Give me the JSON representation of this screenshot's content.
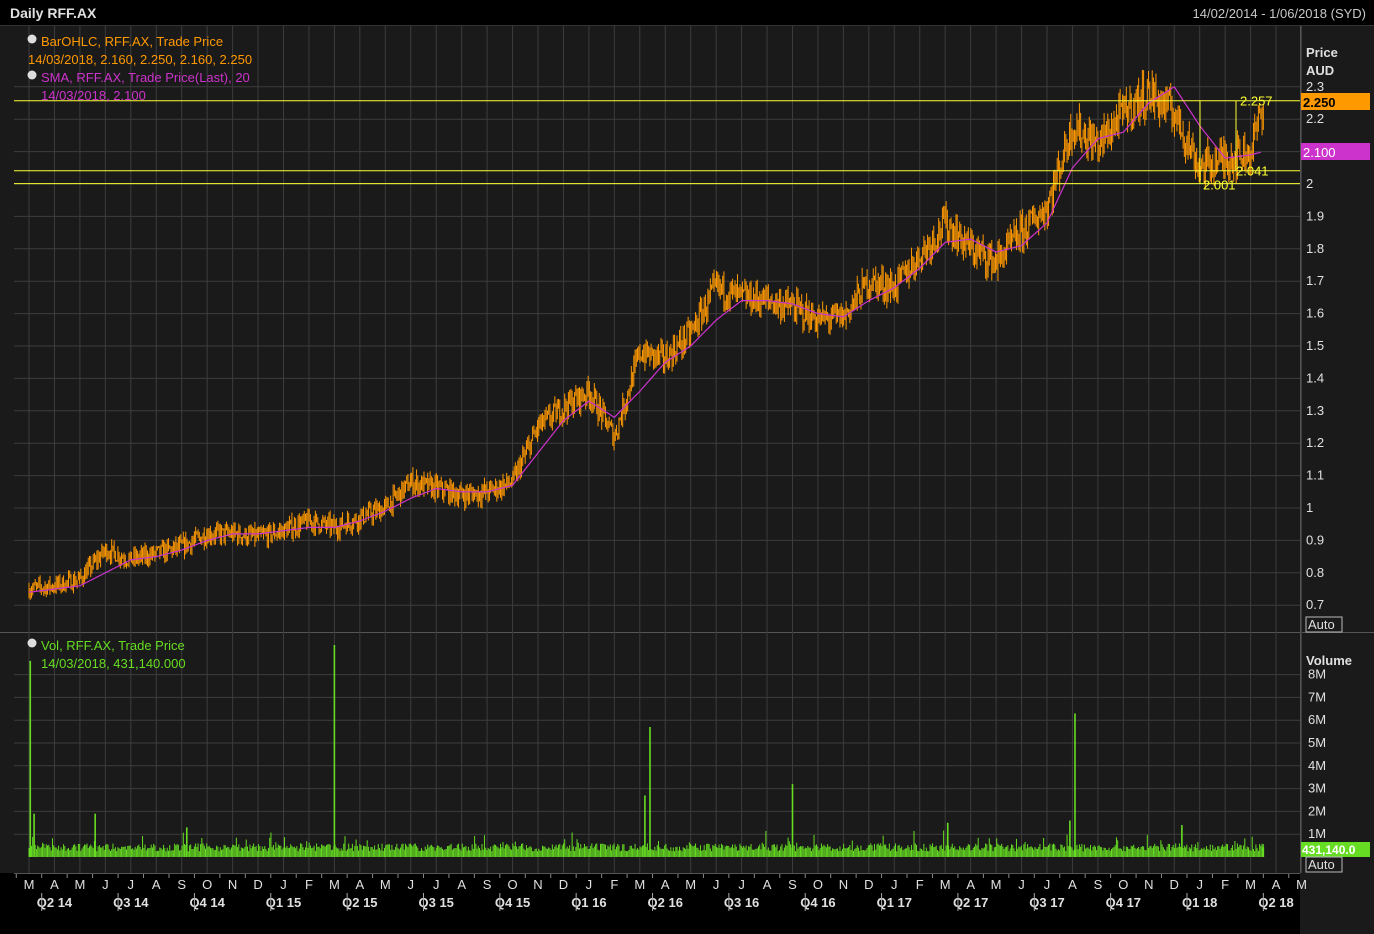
{
  "header": {
    "title": "Daily RFF.AX",
    "range": "14/02/2014 - 1/06/2018 (SYD)"
  },
  "legend": {
    "ohlc_name": "BarOHLC, RFF.AX, Trade Price",
    "ohlc_values": "14/03/2018, 2.160, 2.250, 2.160, 2.250",
    "sma_name": "SMA, RFF.AX, Trade Price(Last),  20",
    "sma_values": "14/03/2018, 2.100",
    "vol_name": "Vol, RFF.AX, Trade Price",
    "vol_values": "14/03/2018, 431,140.000"
  },
  "price_axis": {
    "title": "Price",
    "unit": "AUD",
    "auto": "Auto",
    "tag_last": "2.250",
    "tag_sma": "2.100"
  },
  "volume_axis": {
    "title": "Volume",
    "auto": "Auto",
    "tag_last": "431,140.0"
  },
  "levels": [
    {
      "value": 2.257,
      "label": "2.257"
    },
    {
      "value": 2.041,
      "label": "2.041"
    },
    {
      "value": 2.001,
      "label": "2.001"
    }
  ],
  "colors": {
    "background": "#1a1a1a",
    "grid": "#3c3c3c",
    "price": "#ff9900",
    "sma": "#cc33cc",
    "volume": "#66dd22",
    "level": "#ffff33"
  },
  "chart_data": [
    {
      "type": "ohlc",
      "title": "Daily RFF.AX",
      "ylabel": "Price AUD",
      "ylim": [
        0.65,
        2.35
      ],
      "yticks": [
        "0.7",
        "0.8",
        "0.9",
        "1",
        "1.1",
        "1.2",
        "1.3",
        "1.4",
        "1.5",
        "1.6",
        "1.7",
        "1.8",
        "1.9",
        "2",
        "2.1",
        "2.2",
        "2.3"
      ],
      "month_labels": [
        "M",
        "A",
        "M",
        "J",
        "J",
        "A",
        "S",
        "O",
        "N",
        "D",
        "J",
        "F",
        "M",
        "A",
        "M",
        "J",
        "J",
        "A",
        "S",
        "O",
        "N",
        "D",
        "J",
        "F",
        "M",
        "A",
        "M",
        "J",
        "J",
        "A",
        "S",
        "O",
        "N",
        "D",
        "J",
        "F",
        "M",
        "A",
        "M",
        "J",
        "J",
        "A",
        "S",
        "O",
        "N",
        "D",
        "J",
        "F",
        "M",
        "A",
        "M"
      ],
      "quarter_labels": [
        "Q2 14",
        "Q3 14",
        "Q4 14",
        "Q1 15",
        "Q2 15",
        "Q3 15",
        "Q4 15",
        "Q1 16",
        "Q2 16",
        "Q3 16",
        "Q4 16",
        "Q1 17",
        "Q2 17",
        "Q3 17",
        "Q4 17",
        "Q1 18",
        "Q2 18"
      ],
      "x_months": [
        0,
        1,
        2,
        3,
        4,
        5,
        6,
        7,
        8,
        9,
        10,
        11,
        12,
        13,
        14,
        15,
        16,
        17,
        18,
        19,
        20,
        21,
        22,
        23,
        24,
        25,
        26,
        27,
        28,
        29,
        30,
        31,
        32,
        33,
        34,
        35,
        36,
        37,
        38,
        39,
        40,
        41,
        42,
        43,
        44,
        45,
        46,
        47,
        48,
        48.5
      ],
      "series": [
        {
          "name": "BarOHLC, RFF.AX, Trade Price",
          "values": [
            0.75,
            0.76,
            0.78,
            0.87,
            0.84,
            0.86,
            0.88,
            0.92,
            0.92,
            0.91,
            0.93,
            0.96,
            0.94,
            0.97,
            1.0,
            1.08,
            1.06,
            1.04,
            1.05,
            1.08,
            1.25,
            1.31,
            1.36,
            1.22,
            1.48,
            1.46,
            1.54,
            1.68,
            1.65,
            1.64,
            1.62,
            1.58,
            1.59,
            1.7,
            1.68,
            1.78,
            1.88,
            1.8,
            1.76,
            1.85,
            1.93,
            2.18,
            2.12,
            2.22,
            2.28,
            2.22,
            2.05,
            2.08,
            2.1,
            2.25
          ]
        },
        {
          "name": "SMA, RFF.AX, Trade Price(Last),  20",
          "values": [
            0.74,
            0.75,
            0.76,
            0.8,
            0.84,
            0.85,
            0.87,
            0.9,
            0.92,
            0.92,
            0.93,
            0.94,
            0.94,
            0.96,
            0.99,
            1.03,
            1.06,
            1.05,
            1.05,
            1.07,
            1.17,
            1.27,
            1.33,
            1.28,
            1.36,
            1.45,
            1.5,
            1.58,
            1.64,
            1.64,
            1.63,
            1.6,
            1.59,
            1.64,
            1.68,
            1.74,
            1.82,
            1.83,
            1.79,
            1.81,
            1.88,
            2.05,
            2.14,
            2.16,
            2.25,
            2.3,
            2.18,
            2.08,
            2.09,
            2.1
          ]
        }
      ]
    },
    {
      "type": "bar",
      "title": "Vol, RFF.AX, Trade Price",
      "ylabel": "Volume",
      "ylim": [
        0,
        9
      ],
      "yticks": [
        "1M",
        "2M",
        "3M",
        "4M",
        "5M",
        "6M",
        "7M",
        "8M"
      ],
      "unit": "M",
      "spikes": [
        {
          "x": 0.05,
          "value": 8.6
        },
        {
          "x": 0.2,
          "value": 1.9
        },
        {
          "x": 2.6,
          "value": 1.9
        },
        {
          "x": 6.2,
          "value": 1.3
        },
        {
          "x": 12.0,
          "value": 9.3
        },
        {
          "x": 24.4,
          "value": 5.7
        },
        {
          "x": 24.2,
          "value": 2.7
        },
        {
          "x": 30.0,
          "value": 3.2
        },
        {
          "x": 36.1,
          "value": 1.5
        },
        {
          "x": 41.1,
          "value": 6.3
        },
        {
          "x": 40.9,
          "value": 1.6
        },
        {
          "x": 45.3,
          "value": 1.4
        },
        {
          "x": 48.5,
          "value": 0.431
        }
      ],
      "baseline": 0.25
    }
  ]
}
